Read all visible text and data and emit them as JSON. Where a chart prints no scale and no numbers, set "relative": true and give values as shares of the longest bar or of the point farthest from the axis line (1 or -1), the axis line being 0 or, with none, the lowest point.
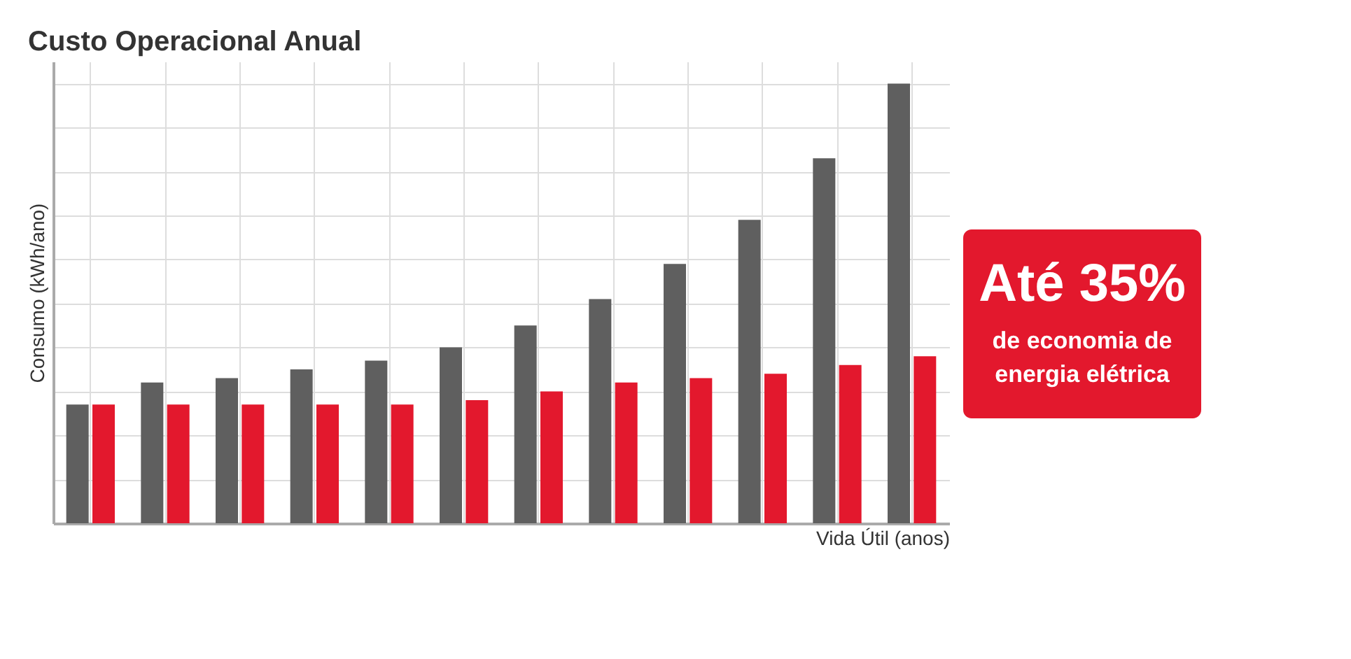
{
  "chart_data": {
    "type": "bar",
    "title": "Custo Operacional Anual",
    "xlabel": "Vida Útil (anos)",
    "ylabel": "Consumo (kWh/ano)",
    "relative": true,
    "grid": true,
    "categories": [
      null,
      null,
      null,
      null,
      null,
      null,
      null,
      null,
      null,
      null,
      null,
      null
    ],
    "series": [
      {
        "color": "#5f5f5f",
        "values": [
          0.27,
          0.32,
          0.33,
          0.35,
          0.37,
          0.4,
          0.45,
          0.51,
          0.59,
          0.69,
          0.83,
          1.0
        ]
      },
      {
        "color": "#e3182d",
        "values": [
          0.27,
          0.27,
          0.27,
          0.27,
          0.27,
          0.28,
          0.3,
          0.32,
          0.33,
          0.34,
          0.36,
          0.38
        ]
      }
    ],
    "annotations": [
      "Até 35%",
      "de economia de energia elétrica"
    ]
  }
}
